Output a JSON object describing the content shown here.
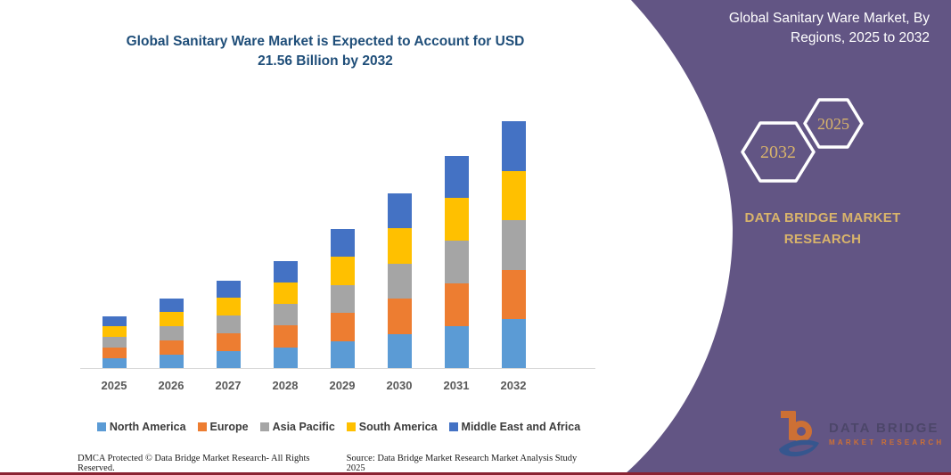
{
  "chart": {
    "title_lines": [
      "Global Sanitary Ware Market is Expected to Account for USD",
      "21.56 Billion by 2032"
    ]
  },
  "chart_data": {
    "type": "bar",
    "stacked": true,
    "title": "Global Sanitary Ware Market is Expected to Account for USD 21.56 Billion by 2032",
    "unit": "USD Billion",
    "total_2032": 21.56,
    "categories": [
      "2025",
      "2026",
      "2027",
      "2028",
      "2029",
      "2030",
      "2031",
      "2032"
    ],
    "series": [
      {
        "name": "North America",
        "color": "#5B9BD5",
        "values": [
          0.92,
          1.23,
          1.54,
          1.88,
          2.44,
          3.06,
          3.71,
          4.31
        ]
      },
      {
        "name": "Europe",
        "color": "#ED7D31",
        "values": [
          0.92,
          1.23,
          1.54,
          1.88,
          2.44,
          3.06,
          3.71,
          4.31
        ]
      },
      {
        "name": "Asia Pacific",
        "color": "#A5A5A5",
        "values": [
          0.92,
          1.23,
          1.54,
          1.88,
          2.44,
          3.06,
          3.71,
          4.31
        ]
      },
      {
        "name": "South America",
        "color": "#FFC000",
        "values": [
          0.92,
          1.23,
          1.54,
          1.88,
          2.44,
          3.06,
          3.71,
          4.31
        ]
      },
      {
        "name": "Middle East and Africa",
        "color": "#4472C4",
        "values": [
          0.92,
          1.23,
          1.54,
          1.88,
          2.44,
          3.06,
          3.71,
          4.31
        ]
      }
    ],
    "ylim": [
      0,
      22
    ],
    "xlabel": "",
    "ylabel": "",
    "grid": false,
    "legend_position": "bottom"
  },
  "footer": {
    "dmca": "DMCA Protected © Data Bridge Market Research-  All Rights Reserved.",
    "source": "Source: Data Bridge Market Research  Market Analysis Study 2025"
  },
  "panel": {
    "background_color": "#625584",
    "accent_color": "#D9B46B",
    "header_lines": [
      "Global Sanitary Ware Market, By",
      "Regions, 2025 to 2032"
    ],
    "hexagons": [
      {
        "label": "2032"
      },
      {
        "label": "2025"
      }
    ],
    "brand_lines": [
      "DATA BRIDGE MARKET",
      "RESEARCH"
    ],
    "logo": {
      "title": "DATA BRIDGE",
      "subtitle": "MARKET RESEARCH",
      "orange": "#E87722",
      "blue": "#2C5791"
    }
  }
}
